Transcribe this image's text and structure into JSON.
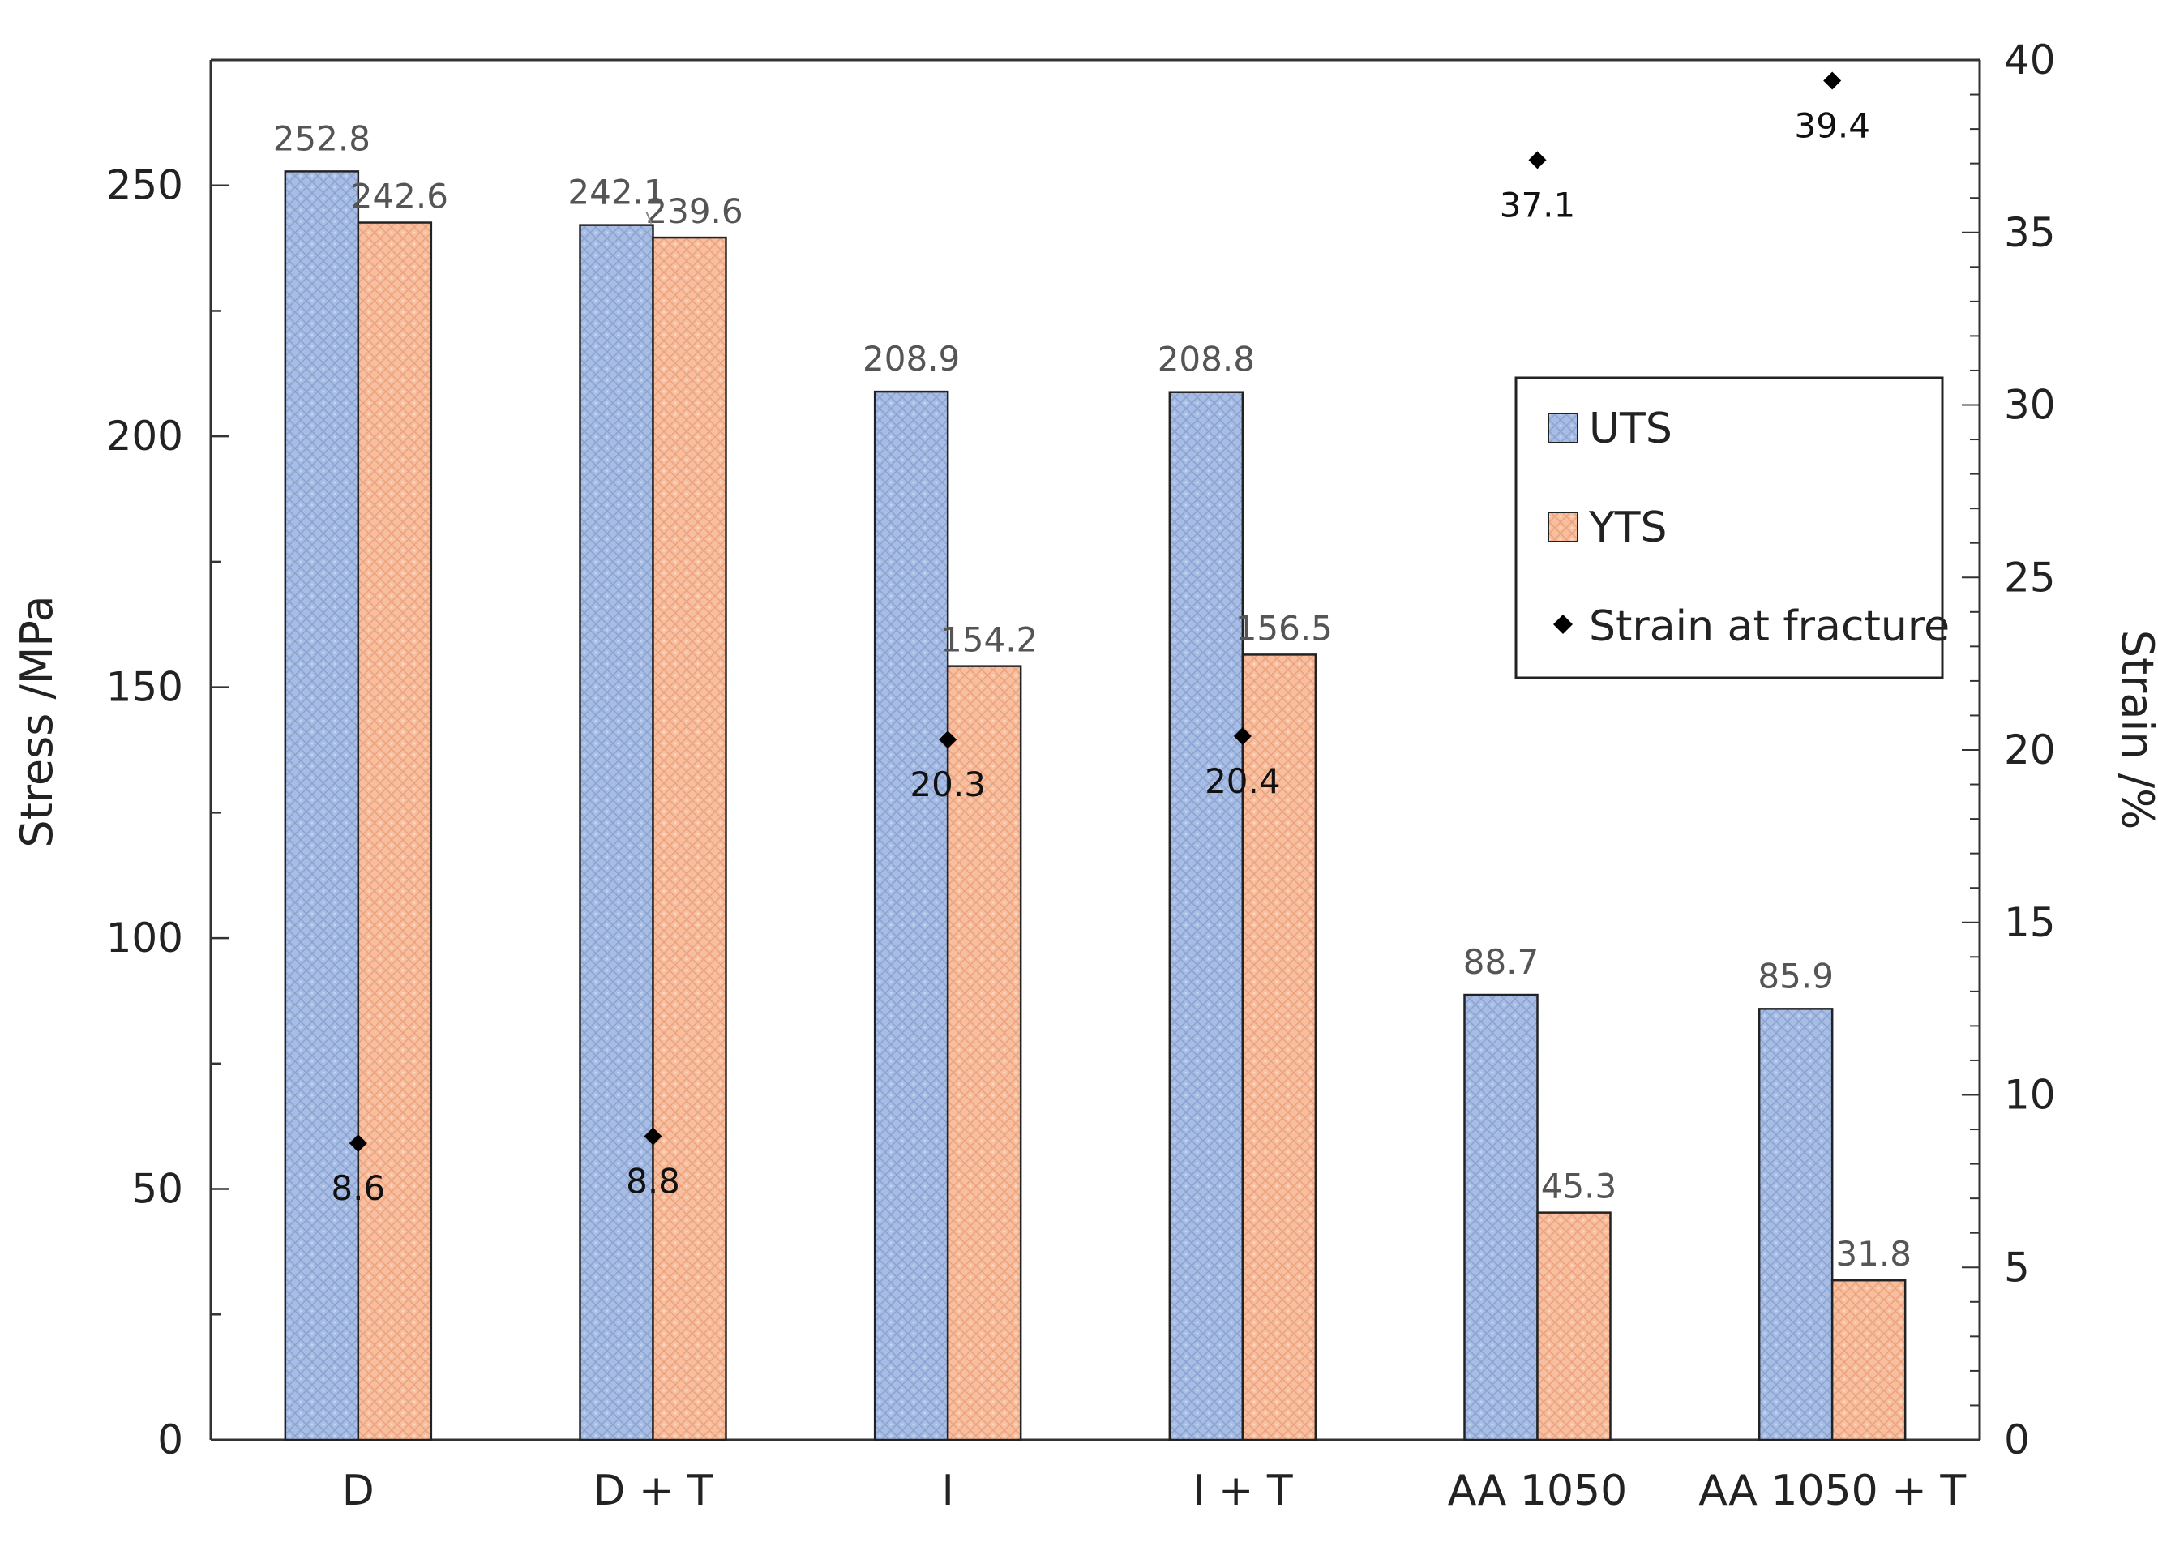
{
  "chart_data": {
    "type": "bar",
    "title": "",
    "categories": [
      "D",
      "D + T",
      "I",
      "I + T",
      "AA 1050",
      "AA 1050 + T"
    ],
    "series": [
      {
        "name": "UTS",
        "axis": "left",
        "color": "#a8bde3",
        "values": [
          252.8,
          242.1,
          208.9,
          208.8,
          88.7,
          85.9
        ]
      },
      {
        "name": "YTS",
        "axis": "left",
        "color": "#f7bf9f",
        "values": [
          242.6,
          239.6,
          154.2,
          156.5,
          45.3,
          31.8
        ]
      },
      {
        "name": "Strain at fracture",
        "axis": "right",
        "type": "scatter",
        "marker": "diamond",
        "color": "#000000",
        "values": [
          8.6,
          8.8,
          20.3,
          20.4,
          37.1,
          39.4
        ]
      }
    ],
    "bar_labels": {
      "UTS": [
        "252.8",
        "242.1",
        "208.9",
        "208.8",
        "88.7",
        "85.9"
      ],
      "YTS": [
        "242.6",
        "239.6",
        "154.2",
        "156.5",
        "45.3",
        "31.8"
      ],
      "Strain at fracture": [
        "8.6",
        "8.8",
        "20.3",
        "20.4",
        "37.1",
        "39.4"
      ]
    },
    "ylabel_left": "Stress /MPa",
    "ylabel_right": "Strain /%",
    "ylim_left": [
      0,
      275
    ],
    "yticks_left": [
      0,
      50,
      100,
      150,
      200,
      250
    ],
    "ylim_right": [
      0,
      40
    ],
    "yticks_right": [
      0,
      5,
      10,
      15,
      20,
      25,
      30,
      35,
      40
    ],
    "legend_position": "upper-right",
    "legend": [
      "UTS",
      "YTS",
      "Strain at fracture"
    ],
    "grid": false
  }
}
